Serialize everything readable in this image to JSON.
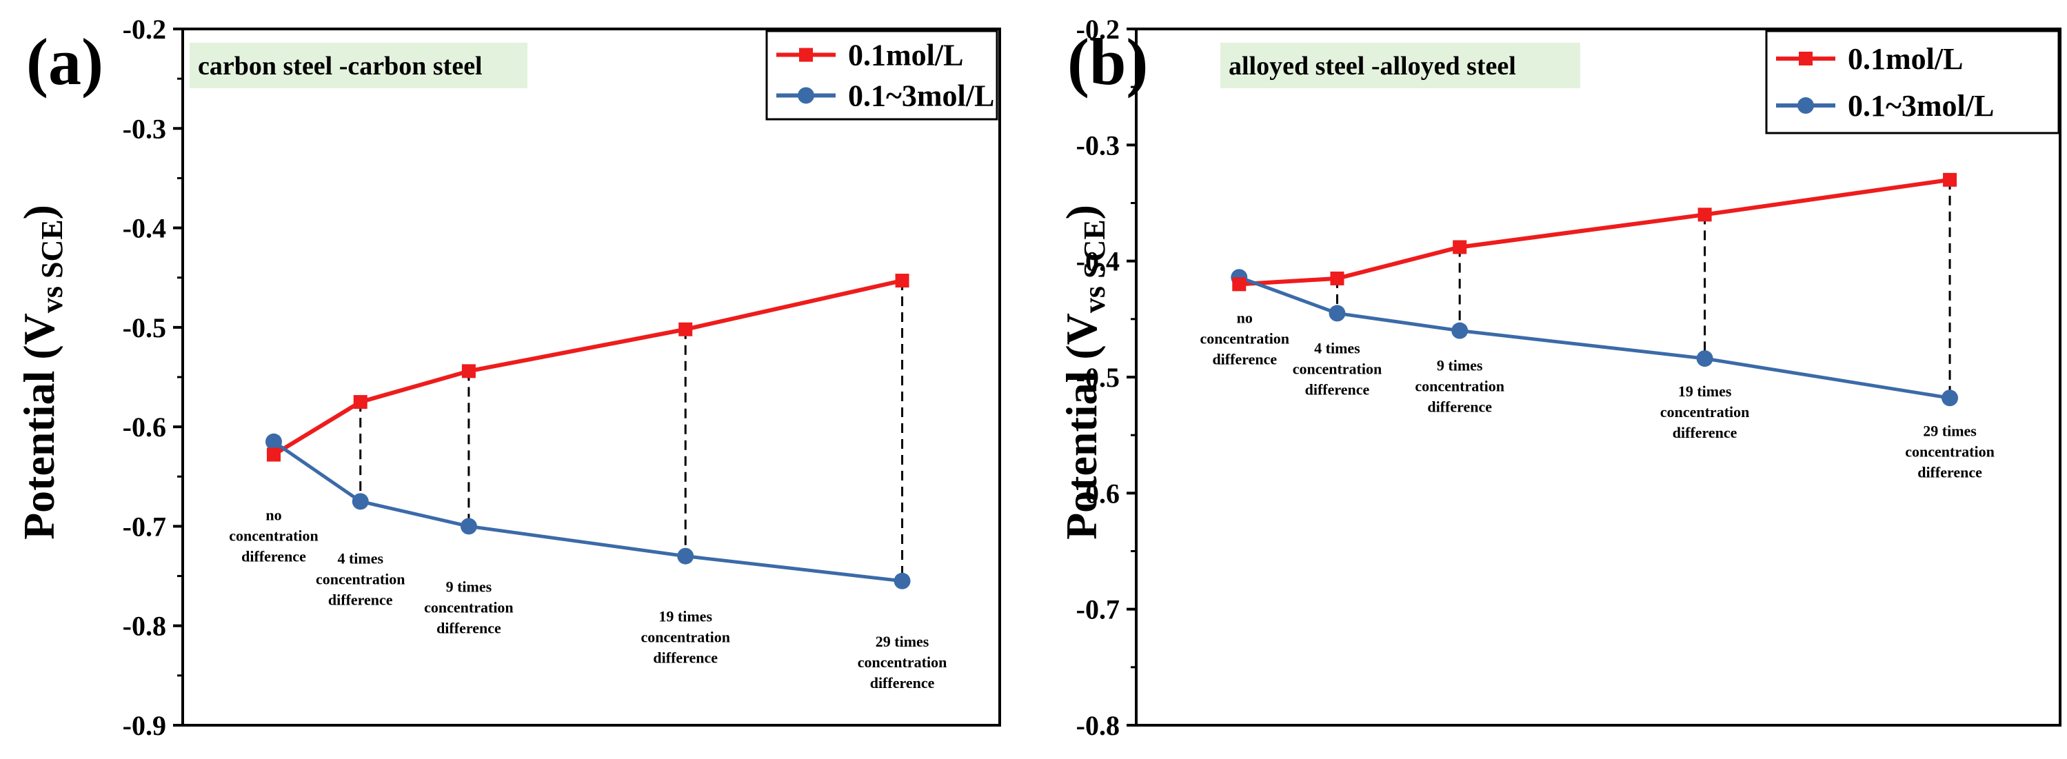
{
  "colors": {
    "red": "#ee1c1c",
    "blue": "#3b6aa8",
    "badge_bg": "#e3f2dc",
    "axis": "#000000"
  },
  "chart_data": [
    {
      "type": "line",
      "panel_label": "(a)",
      "title": "carbon steel -carbon steel",
      "ylabel_main": "Potential (V",
      "ylabel_sub": "vs SCE",
      "ylabel_close": ")",
      "ylim": [
        -0.9,
        -0.2
      ],
      "yticks": [
        -0.2,
        -0.3,
        -0.4,
        -0.5,
        -0.6,
        -0.7,
        -0.8,
        -0.9
      ],
      "ytick_labels": [
        "-0.2",
        "-0.3",
        "-0.4",
        "-0.5",
        "-0.6",
        "-0.7",
        "-0.8",
        "-0.9"
      ],
      "legend_position": "top-right",
      "x": [
        0,
        4,
        9,
        19,
        29
      ],
      "xlim": [
        -4.2,
        33.5
      ],
      "point_labels": [
        [
          "no",
          "concentration",
          "difference"
        ],
        [
          "4 times",
          "concentration",
          "difference"
        ],
        [
          "9 times",
          "concentration",
          "difference"
        ],
        [
          "19 times",
          "concentration",
          "difference"
        ],
        [
          "29 times",
          "concentration",
          "difference"
        ]
      ],
      "series": [
        {
          "name": "0.1mol/L",
          "color": "#ee1c1c",
          "marker": "square",
          "values": [
            -0.628,
            -0.575,
            -0.544,
            -0.502,
            -0.453
          ]
        },
        {
          "name": "0.1~3mol/L",
          "color": "#3b6aa8",
          "marker": "circle",
          "values": [
            -0.615,
            -0.675,
            -0.7,
            -0.73,
            -0.755
          ]
        }
      ]
    },
    {
      "type": "line",
      "panel_label": "(b)",
      "title": "alloyed steel -alloyed steel",
      "ylabel_main": "Potential (V",
      "ylabel_sub": "vs SCE",
      "ylabel_close": ")",
      "ylim": [
        -0.8,
        -0.2
      ],
      "yticks": [
        -0.2,
        -0.3,
        -0.4,
        -0.5,
        -0.6,
        -0.7,
        -0.8
      ],
      "ytick_labels": [
        "-0.2",
        "-0.3",
        "-0.4",
        "-0.5",
        "-0.6",
        "-0.7",
        "-0.8"
      ],
      "legend_position": "top-right",
      "x": [
        0,
        4,
        9,
        19,
        29
      ],
      "xlim": [
        -4.2,
        33.5
      ],
      "point_labels": [
        [
          "no",
          "concentration",
          "difference"
        ],
        [
          "4 times",
          "concentration",
          "difference"
        ],
        [
          "9 times",
          "concentration",
          "difference"
        ],
        [
          "19 times",
          "concentration",
          "difference"
        ],
        [
          "29 times",
          "concentration",
          "difference"
        ]
      ],
      "series": [
        {
          "name": "0.1mol/L",
          "color": "#ee1c1c",
          "marker": "square",
          "values": [
            -0.42,
            -0.415,
            -0.388,
            -0.36,
            -0.33
          ]
        },
        {
          "name": "0.1~3mol/L",
          "color": "#3b6aa8",
          "marker": "circle",
          "values": [
            -0.414,
            -0.445,
            -0.46,
            -0.484,
            -0.518
          ]
        }
      ]
    }
  ]
}
